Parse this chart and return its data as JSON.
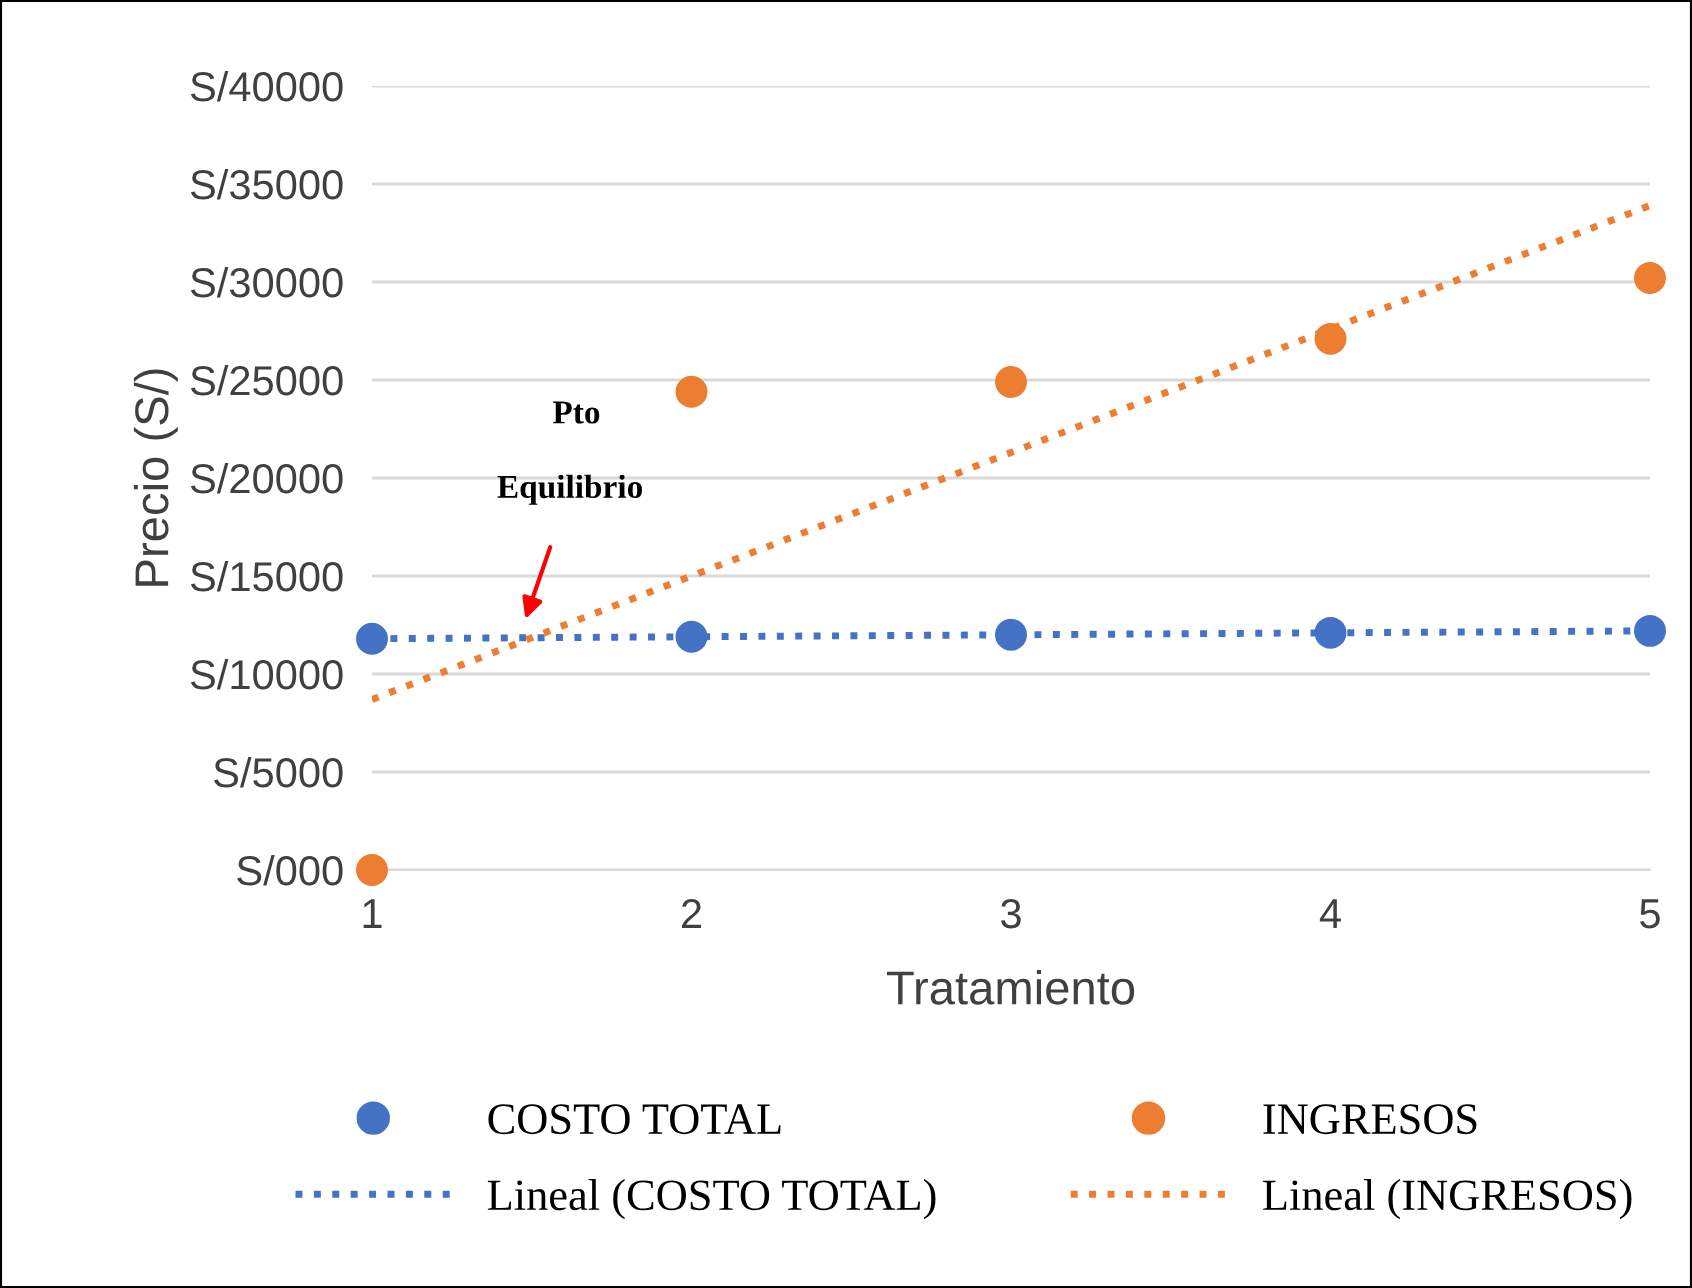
{
  "chart_data": {
    "type": "scatter",
    "xlabel": "Tratamiento",
    "ylabel": "Precio (S/)",
    "x": [
      1,
      2,
      3,
      4,
      5
    ],
    "series": [
      {
        "name": "COSTO TOTAL",
        "color": "#4472c4",
        "values": [
          11800,
          11900,
          12000,
          12100,
          12200
        ],
        "marker": "circle"
      },
      {
        "name": "Lineal (COSTO TOTAL)",
        "type": "line",
        "color": "#4472c4",
        "values": [
          11800,
          11900,
          12000,
          12100,
          12200
        ],
        "marker": "none",
        "line_style": "dotted"
      },
      {
        "name": "INGRESOS",
        "color": "#ed7d31",
        "values": [
          0,
          24400,
          24900,
          27100,
          30200
        ],
        "marker": "circle"
      },
      {
        "name": "Lineal (INGRESOS)",
        "type": "line",
        "color": "#ed7d31",
        "values": [
          8700,
          15000,
          21300,
          27600,
          33900
        ],
        "marker": "none",
        "line_style": "dotted"
      }
    ],
    "xlim": [
      1,
      5
    ],
    "xticks": [
      1,
      2,
      3,
      4,
      5
    ],
    "ylim": [
      0,
      40000
    ],
    "yticks": [
      {
        "value": 0,
        "label": "S/000"
      },
      {
        "value": 5000,
        "label": "S/5000"
      },
      {
        "value": 10000,
        "label": "S/10000"
      },
      {
        "value": 15000,
        "label": "S/15000"
      },
      {
        "value": 20000,
        "label": "S/20000"
      },
      {
        "value": 25000,
        "label": "S/25000"
      },
      {
        "value": 30000,
        "label": "S/30000"
      },
      {
        "value": 35000,
        "label": "S/35000"
      },
      {
        "value": 40000,
        "label": "S/40000"
      }
    ],
    "annotations": [
      "Pto",
      "Equilibrio"
    ],
    "grid": "y",
    "legend": "bottom"
  }
}
